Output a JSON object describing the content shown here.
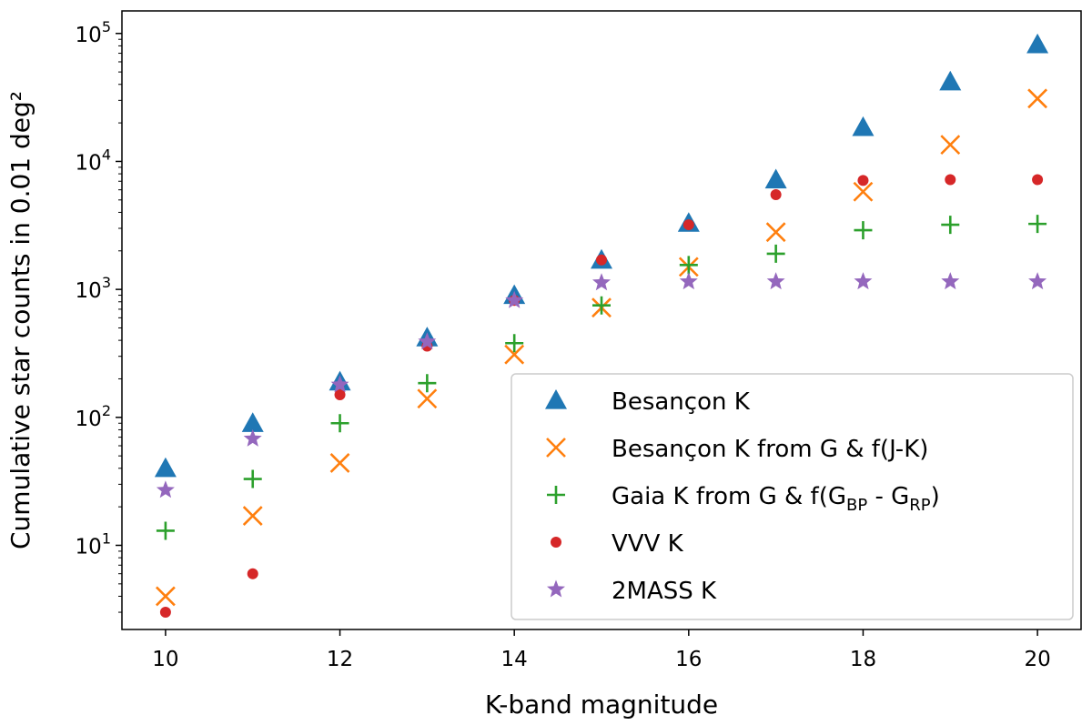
{
  "chart_data": {
    "type": "scatter",
    "xlabel": "K-band magnitude",
    "ylabel": "Cumulative star counts in 0.01 deg²",
    "y_scale": "log",
    "xlim": [
      9.5,
      20.5
    ],
    "ylim": [
      2.2,
      150000
    ],
    "x_ticks": [
      10,
      12,
      14,
      16,
      18,
      20
    ],
    "y_ticks": [
      {
        "value": 10,
        "base": "10",
        "exp": "1"
      },
      {
        "value": 100,
        "base": "10",
        "exp": "2"
      },
      {
        "value": 1000,
        "base": "10",
        "exp": "3"
      },
      {
        "value": 10000,
        "base": "10",
        "exp": "4"
      },
      {
        "value": 100000,
        "base": "10",
        "exp": "5"
      }
    ],
    "grid": false,
    "legend_position": "lower-right",
    "x": [
      10,
      11,
      12,
      13,
      14,
      15,
      16,
      17,
      18,
      19,
      20
    ],
    "series": [
      {
        "name": "Besançon K",
        "marker": "triangle",
        "color": "#1f77b4",
        "values": [
          40,
          90,
          190,
          420,
          900,
          1700,
          3300,
          7200,
          18500,
          42000,
          82000
        ]
      },
      {
        "name": "Besançon K from G & f(J-K)",
        "marker": "x",
        "color": "#ff7f0e",
        "values": [
          4,
          17,
          44,
          140,
          310,
          720,
          1500,
          2800,
          5800,
          13500,
          31000
        ]
      },
      {
        "name": "Gaia K from G & f(G",
        "name_sub1": "BP",
        "name_mid": " - G",
        "name_sub2": "RP",
        "name_end": ")",
        "marker": "plus",
        "color": "#2ca02c",
        "values": [
          13,
          33,
          90,
          185,
          380,
          750,
          1550,
          1900,
          2900,
          3200,
          3250
        ]
      },
      {
        "name": "VVV K",
        "marker": "dot",
        "color": "#d62728",
        "values": [
          3,
          6,
          150,
          360,
          820,
          1700,
          3200,
          5500,
          7100,
          7200,
          7200
        ]
      },
      {
        "name": "2MASS K",
        "marker": "star",
        "color": "#9467bd",
        "values": [
          27,
          68,
          180,
          390,
          820,
          1130,
          1150,
          1150,
          1150,
          1150,
          1150
        ]
      }
    ]
  }
}
